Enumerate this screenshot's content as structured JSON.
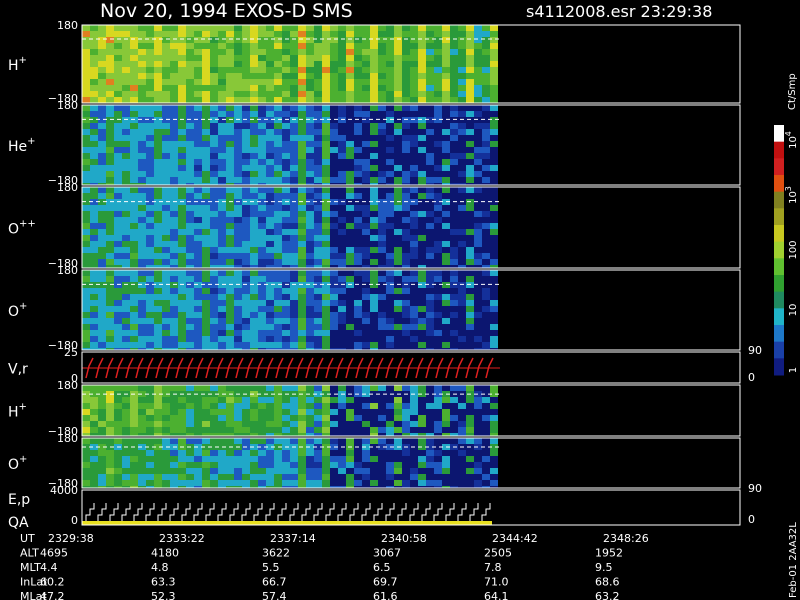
{
  "header": {
    "title": "Nov 20, 1994   EXOS-D SMS",
    "file_info": "s4112008.esr  23:29:38"
  },
  "panels": [
    {
      "label": "H",
      "charge": "+",
      "top": "180",
      "bottom": "−180"
    },
    {
      "label": "He",
      "charge": "+",
      "top": "180",
      "bottom": "−180"
    },
    {
      "label": "O",
      "charge": "++",
      "top": "180",
      "bottom": "−180"
    },
    {
      "label": "O",
      "charge": "+",
      "top": "180",
      "bottom": "−180"
    },
    {
      "label": "V,r",
      "charge": "",
      "top": "25",
      "bottom": "0",
      "right_top": "90",
      "right_bottom": "0"
    },
    {
      "label": "H",
      "charge": "+",
      "top": "180",
      "bottom": "−180"
    },
    {
      "label": "O",
      "charge": "+",
      "top": "180",
      "bottom": "−180"
    },
    {
      "label": "E,p",
      "label2": "QA",
      "charge": "",
      "top": "4000",
      "bottom": "0",
      "right_top": "90",
      "right_bottom": "0"
    }
  ],
  "colorbar": {
    "unit": "Ct/Smp",
    "labels": [
      {
        "base": "10",
        "exp": "4"
      },
      {
        "base": "10",
        "exp": "3"
      },
      {
        "base": "100",
        "exp": ""
      },
      {
        "base": "10",
        "exp": ""
      },
      {
        "base": "1",
        "exp": ""
      }
    ]
  },
  "table": {
    "rows": [
      {
        "label": "UT",
        "values": [
          "2329:38",
          "2333:22",
          "2337:14",
          "2340:58",
          "2344:42",
          "2348:26"
        ]
      },
      {
        "label": "ALT",
        "values": [
          "4695",
          "4180",
          "3622",
          "3067",
          "2505",
          "1952"
        ]
      },
      {
        "label": "MLT",
        "values": [
          "4.4",
          "4.8",
          "5.5",
          "6.5",
          "7.8",
          "9.5"
        ]
      },
      {
        "label": "InLat",
        "values": [
          "60.2",
          "63.3",
          "66.7",
          "69.7",
          "71.0",
          "68.6"
        ]
      },
      {
        "label": "MLat",
        "values": [
          "47.2",
          "52.3",
          "57.4",
          "61.6",
          "64.1",
          "63.2"
        ]
      }
    ]
  },
  "footer": "Feb-01 2AA32L"
}
